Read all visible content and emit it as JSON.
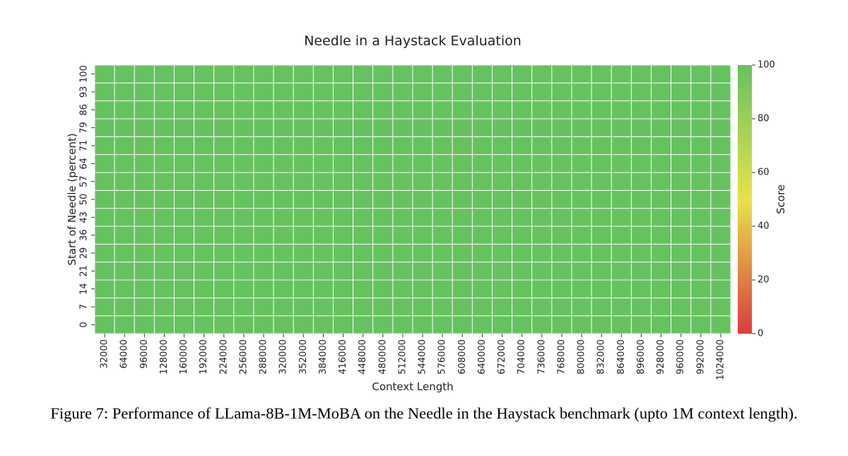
{
  "caption": "Figure 7: Performance of LLama-8B-1M-MoBA on the Needle in the Haystack benchmark (upto 1M context length).",
  "chart_data": {
    "type": "heatmap",
    "title": "Needle in a Haystack Evaluation",
    "xlabel": "Context Length",
    "ylabel": "Start of Needle (percent)",
    "x": [
      32000,
      64000,
      96000,
      128000,
      160000,
      192000,
      224000,
      256000,
      288000,
      320000,
      352000,
      384000,
      416000,
      448000,
      480000,
      512000,
      544000,
      576000,
      608000,
      640000,
      672000,
      704000,
      736000,
      768000,
      800000,
      832000,
      864000,
      896000,
      928000,
      960000,
      992000,
      1024000
    ],
    "y": [
      0,
      7,
      14,
      21,
      29,
      36,
      43,
      50,
      57,
      64,
      71,
      79,
      86,
      93,
      100
    ],
    "value_uniform": 100,
    "colorbar": {
      "label": "Score",
      "range": [
        0,
        100
      ],
      "ticks": [
        0,
        20,
        40,
        60,
        80,
        100
      ],
      "colors": [
        "#d93d3d",
        "#e8d448",
        "#66c25f"
      ]
    },
    "grid": true
  }
}
